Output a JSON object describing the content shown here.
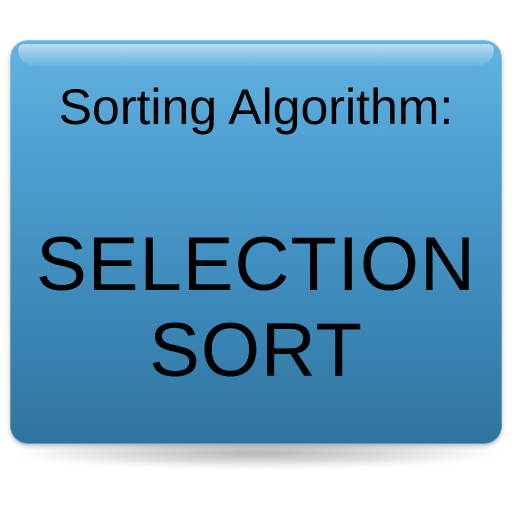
{
  "icon": {
    "heading": "Sorting Algorithm:",
    "title_lines": [
      "SELECTION",
      "SORT"
    ]
  },
  "colors": {
    "tile_top": "#62b3e2",
    "tile_bottom": "#2f74a0",
    "text": "#000000"
  }
}
